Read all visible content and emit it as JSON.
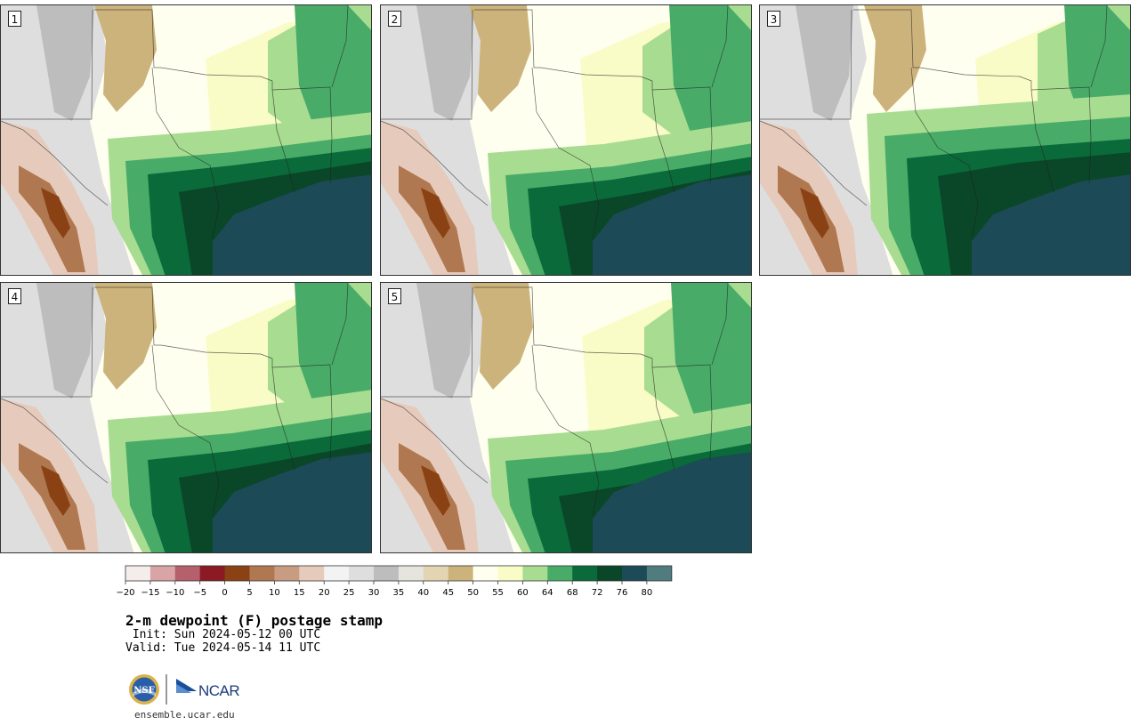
{
  "panels": [
    {
      "label": "1"
    },
    {
      "label": "2"
    },
    {
      "label": "3"
    },
    {
      "label": "4"
    },
    {
      "label": "5"
    }
  ],
  "colorbar": {
    "ticks": [
      "−20",
      "−15",
      "−10",
      "−5",
      "0",
      "5",
      "10",
      "15",
      "20",
      "25",
      "30",
      "35",
      "40",
      "45",
      "50",
      "55",
      "60",
      "64",
      "68",
      "72",
      "76",
      "80"
    ],
    "colors": [
      "#f5ecec",
      "#d8a4a6",
      "#b5606a",
      "#8b1a24",
      "#8a4214",
      "#b07850",
      "#c89c80",
      "#e6cbbc",
      "#f3f3f3",
      "#dedede",
      "#bdbdbd",
      "#e5e5de",
      "#e3d4b2",
      "#ccb37c",
      "#fffff0",
      "#fafcc8",
      "#a8dc90",
      "#48ac68",
      "#0a6a3a",
      "#0a4628",
      "#1c4a56",
      "#507c80"
    ]
  },
  "title": "2-m dewpoint (F) postage stamp",
  "init": " Init: Sun 2024-05-12 00 UTC",
  "valid": "Valid: Tue 2024-05-14 11 UTC",
  "logos": {
    "nsf": "NSF",
    "ncar": "NCAR"
  },
  "site": "ensemble.ucar.edu"
}
